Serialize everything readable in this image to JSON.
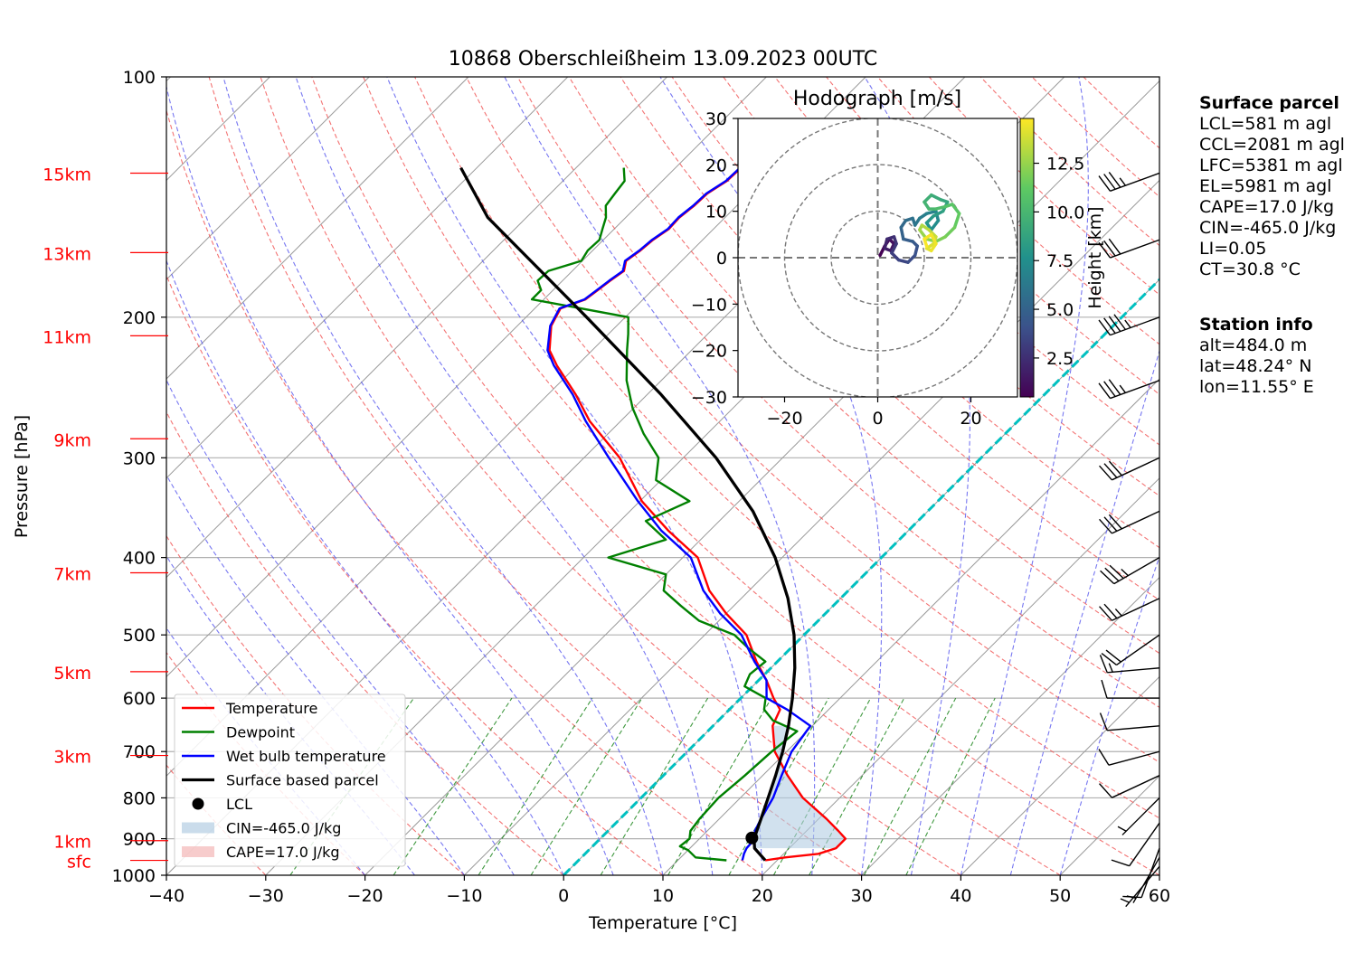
{
  "title": "10868 Oberschleißheim 13.09.2023 00UTC",
  "chart_data": {
    "type": "line",
    "subtype": "skew-T log-p diagram",
    "xlabel": "Temperature [°C]",
    "ylabel": "Pressure [hPa]",
    "xlim": [
      -40,
      60
    ],
    "ylim": [
      1000,
      100
    ],
    "y_scale": "log",
    "grid": true,
    "x_ticks": [
      "−40",
      "−30",
      "−20",
      "−10",
      "0",
      "10",
      "20",
      "30",
      "40",
      "50",
      "60"
    ],
    "x_tick_values": [
      -40,
      -30,
      -20,
      -10,
      0,
      10,
      20,
      30,
      40,
      50,
      60
    ],
    "y_ticks": [
      "100",
      "200",
      "300",
      "400",
      "500",
      "600",
      "700",
      "800",
      "900",
      "1000"
    ],
    "y_tick_values": [
      100,
      200,
      300,
      400,
      500,
      600,
      700,
      800,
      900,
      1000
    ],
    "height_labels": [
      {
        "label": "15km",
        "p": 132
      },
      {
        "label": "13km",
        "p": 166
      },
      {
        "label": "11km",
        "p": 211
      },
      {
        "label": "9km",
        "p": 284
      },
      {
        "label": "7km",
        "p": 418
      },
      {
        "label": "5km",
        "p": 556
      },
      {
        "label": "3km",
        "p": 708
      },
      {
        "label": "1km",
        "p": 905
      },
      {
        "label": "sfc",
        "p": 958
      }
    ],
    "series": [
      {
        "name": "Temperature",
        "color": "#ff0000",
        "p": [
          958,
          950,
          940,
          925,
          900,
          880,
          850,
          800,
          750,
          700,
          650,
          620,
          600,
          570,
          540,
          500,
          470,
          440,
          400,
          370,
          340,
          300,
          270,
          250,
          230,
          220,
          205,
          195,
          190,
          185,
          180,
          175,
          170,
          165,
          160,
          155,
          150,
          145,
          140,
          135,
          130
        ],
        "t": [
          18.8,
          20.5,
          23.5,
          24.7,
          24.7,
          23.2,
          20.8,
          16.3,
          12.5,
          8.8,
          6.0,
          5.1,
          3.3,
          0.8,
          -2.1,
          -5.8,
          -10.0,
          -14.0,
          -18.5,
          -24.2,
          -29.8,
          -36.4,
          -43.1,
          -47.2,
          -52.0,
          -54.3,
          -56.6,
          -57.4,
          -55.8,
          -55.5,
          -55.2,
          -54.8,
          -55.6,
          -55.2,
          -55.0,
          -54.5,
          -54.6,
          -54.3,
          -54.2,
          -53.5,
          -53.4
        ]
      },
      {
        "name": "Dewpoint",
        "color": "#008000",
        "p": [
          958,
          950,
          930,
          920,
          900,
          880,
          850,
          800,
          750,
          700,
          660,
          640,
          620,
          600,
          580,
          560,
          540,
          520,
          500,
          480,
          460,
          440,
          420,
          400,
          380,
          360,
          340,
          320,
          300,
          280,
          260,
          240,
          220,
          210,
          200,
          190,
          185,
          180,
          175,
          170,
          165,
          160,
          155,
          150,
          145,
          140,
          135,
          130
        ],
        "t": [
          14.9,
          11.5,
          10.0,
          8.8,
          9.0,
          8.3,
          8.0,
          7.8,
          8.2,
          8.5,
          9.0,
          5.5,
          3.5,
          2.5,
          -0.8,
          -1.5,
          -1.2,
          -4.2,
          -7.0,
          -12.0,
          -15.3,
          -18.6,
          -20.0,
          -27.5,
          -23.5,
          -27.4,
          -25.0,
          -30.5,
          -32.5,
          -36.4,
          -40.1,
          -43.5,
          -46.5,
          -48.0,
          -49.7,
          -61.2,
          -61.2,
          -62.5,
          -62.4,
          -60.1,
          -60.5,
          -60.4,
          -61.2,
          -62.0,
          -63.2,
          -63.5,
          -63.8,
          -65.2
        ]
      },
      {
        "name": "Wet bulb temperature",
        "color": "#0000ff",
        "p": [
          958,
          940,
          925,
          900,
          880,
          850,
          800,
          750,
          700,
          650,
          620,
          600,
          570,
          540,
          500,
          470,
          440,
          400,
          370,
          340,
          300,
          270,
          250,
          230,
          220,
          205,
          195,
          190,
          185,
          180,
          175,
          170,
          165,
          160,
          155,
          150,
          145,
          140,
          135,
          130
        ],
        "t": [
          16.5,
          16.0,
          15.7,
          15.6,
          14.8,
          14.2,
          13.3,
          11.9,
          10.5,
          9.8,
          5.8,
          2.6,
          0.8,
          -2.3,
          -6.3,
          -10.6,
          -14.6,
          -19.2,
          -24.9,
          -30.2,
          -37.5,
          -43.5,
          -47.5,
          -52.3,
          -54.5,
          -56.7,
          -57.5,
          -55.9,
          -55.6,
          -55.3,
          -54.9,
          -55.7,
          -55.3,
          -55.1,
          -54.6,
          -54.7,
          -54.4,
          -54.3,
          -53.6,
          -53.5
        ]
      },
      {
        "name": "Surface based parcel",
        "color": "#000000",
        "p": [
          958,
          925,
          900,
          850,
          800,
          750,
          700,
          650,
          600,
          550,
          500,
          450,
          400,
          350,
          300,
          250,
          200,
          150,
          130
        ],
        "t": [
          18.8,
          16.5,
          15.5,
          14.2,
          12.8,
          11.3,
          9.6,
          7.6,
          5.2,
          2.4,
          -1.0,
          -5.3,
          -10.7,
          -17.6,
          -26.7,
          -38.6,
          -53.9,
          -73.9,
          -81.6
        ]
      }
    ],
    "lcl": {
      "p": 898,
      "t": 15.2
    },
    "cin_label": "CIN=-465.0 J/kg",
    "cape_label": "CAPE=17.0 J/kg",
    "legend": {
      "placement": "lower-left",
      "items": [
        {
          "label": "Temperature",
          "color": "#ff0000",
          "kind": "line"
        },
        {
          "label": "Dewpoint",
          "color": "#008000",
          "kind": "line"
        },
        {
          "label": "Wet bulb temperature",
          "color": "#0000ff",
          "kind": "line"
        },
        {
          "label": "Surface based parcel",
          "color": "#000000",
          "kind": "line"
        },
        {
          "label": "LCL",
          "color": "#000000",
          "kind": "dot"
        },
        {
          "label": "CIN=-465.0 J/kg",
          "color": "#b3cde3",
          "kind": "patch"
        },
        {
          "label": "CAPE=17.0 J/kg",
          "color": "#f4b6b6",
          "kind": "patch"
        }
      ]
    },
    "wind_barbs": [
      {
        "p": 132,
        "dir": 250,
        "kt": 35
      },
      {
        "p": 160,
        "dir": 250,
        "kt": 30
      },
      {
        "p": 200,
        "dir": 250,
        "kt": 45
      },
      {
        "p": 240,
        "dir": 250,
        "kt": 35
      },
      {
        "p": 300,
        "dir": 245,
        "kt": 30
      },
      {
        "p": 350,
        "dir": 245,
        "kt": 30
      },
      {
        "p": 400,
        "dir": 240,
        "kt": 35
      },
      {
        "p": 450,
        "dir": 245,
        "kt": 25
      },
      {
        "p": 500,
        "dir": 235,
        "kt": 20
      },
      {
        "p": 550,
        "dir": 265,
        "kt": 15
      },
      {
        "p": 600,
        "dir": 270,
        "kt": 10
      },
      {
        "p": 650,
        "dir": 265,
        "kt": 10
      },
      {
        "p": 700,
        "dir": 255,
        "kt": 10
      },
      {
        "p": 750,
        "dir": 245,
        "kt": 10
      },
      {
        "p": 800,
        "dir": 225,
        "kt": 5
      },
      {
        "p": 860,
        "dir": 215,
        "kt": 10
      },
      {
        "p": 925,
        "dir": 200,
        "kt": 10
      },
      {
        "p": 950,
        "dir": 210,
        "kt": 5
      },
      {
        "p": 975,
        "dir": 220,
        "kt": 5
      }
    ],
    "hodograph": {
      "title": "Hodograph [m/s]",
      "xlim": [
        -30,
        30
      ],
      "ylim": [
        -30,
        30
      ],
      "x_ticks": [
        "−20",
        "0",
        "20"
      ],
      "x_tick_values": [
        -20,
        0,
        20
      ],
      "y_ticks": [
        "30",
        "20",
        "10",
        "0",
        "−10",
        "−20",
        "−30"
      ],
      "y_tick_values": [
        30,
        20,
        10,
        0,
        -10,
        -20,
        -30
      ],
      "rings": [
        10,
        20,
        30
      ],
      "colorbar_label": "Height [km]",
      "colorbar_ticks": [
        "12.5",
        "10.0",
        "7.5",
        "5.0",
        "2.5"
      ],
      "colorbar_tick_values": [
        12.5,
        10.0,
        7.5,
        5.0,
        2.5
      ],
      "colorbar_range": [
        0.5,
        14.8
      ],
      "u": [
        0.5,
        1.5,
        2.5,
        3.5,
        2.8,
        1.5,
        2.0,
        3.5,
        4.0,
        3.0,
        4.5,
        6.5,
        8.0,
        8.5,
        7.5,
        5.5,
        5.0,
        6.0,
        7.5,
        8.0,
        9.0,
        10.5,
        12.5,
        13.0,
        11.5,
        10.5,
        12.0,
        14.0,
        15.0,
        13.5,
        11.5,
        10.0,
        11.0,
        12.5,
        14.5,
        16.0,
        17.5,
        16.5,
        14.5,
        12.5,
        10.5,
        9.0,
        9.5,
        11.0,
        12.5,
        12.0,
        10.5,
        11.5,
        12.5,
        11.5,
        10.0,
        10.5
      ],
      "v": [
        0.5,
        2.5,
        4.0,
        3.0,
        1.5,
        2.0,
        4.0,
        4.5,
        3.0,
        1.0,
        -0.5,
        -1.0,
        0.5,
        2.5,
        3.5,
        4.0,
        6.5,
        8.0,
        8.5,
        7.0,
        8.5,
        9.5,
        10.0,
        8.0,
        6.0,
        7.5,
        9.0,
        10.0,
        12.0,
        12.5,
        13.5,
        12.0,
        10.5,
        10.5,
        11.0,
        11.5,
        9.5,
        6.5,
        4.5,
        3.5,
        4.0,
        6.0,
        7.0,
        6.0,
        4.5,
        3.0,
        2.0,
        1.5,
        3.0,
        5.0,
        4.0,
        2.5
      ],
      "h": [
        0.5,
        0.8,
        1.1,
        1.4,
        1.7,
        2.0,
        2.3,
        2.6,
        2.9,
        3.2,
        3.5,
        3.8,
        4.1,
        4.4,
        4.7,
        5.0,
        5.3,
        5.6,
        5.9,
        6.2,
        6.5,
        6.8,
        7.1,
        7.4,
        7.7,
        8.0,
        8.3,
        8.6,
        8.9,
        9.2,
        9.5,
        9.8,
        10.1,
        10.4,
        10.7,
        11.0,
        11.3,
        11.6,
        11.9,
        12.2,
        12.5,
        12.8,
        13.1,
        13.4,
        13.7,
        14.0,
        14.2,
        14.4,
        14.5,
        14.6,
        14.7,
        14.8
      ]
    }
  },
  "surface_parcel": {
    "heading": "Surface parcel",
    "lines": [
      "LCL=581 m agl",
      "CCL=2081 m agl",
      "LFC=5381 m agl",
      "EL=5981 m agl",
      "CAPE=17.0 J/kg",
      "CIN=-465.0 J/kg",
      "LI=0.05",
      "CT=30.8 °C"
    ]
  },
  "station_info": {
    "heading": "Station info",
    "lines": [
      "alt=484.0 m",
      "lat=48.24° N",
      "lon=11.55° E"
    ]
  }
}
